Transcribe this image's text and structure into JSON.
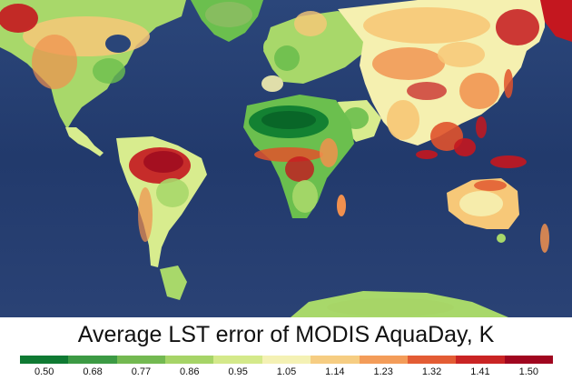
{
  "title": "Average LST error of MODIS AquaDay, K",
  "map": {
    "ocean_color": "#26406f",
    "land_palette": [
      "#0a7a30",
      "#2f9a3e",
      "#6bbf4e",
      "#a8d86a",
      "#d8ec8e",
      "#f5f0b0",
      "#f7c878",
      "#f1904e",
      "#e0522c",
      "#c4171f",
      "#9e0a1f"
    ]
  },
  "colorbar": {
    "colors": [
      "#0f7a33",
      "#3c9a44",
      "#73b951",
      "#a6d467",
      "#d4e98a",
      "#f4f1b4",
      "#f6cd82",
      "#f39c59",
      "#e35c34",
      "#c92424",
      "#a0061f"
    ],
    "tick_labels": [
      "0.50",
      "0.68",
      "0.77",
      "0.86",
      "0.95",
      "1.05",
      "1.14",
      "1.23",
      "1.32",
      "1.41",
      "1.50"
    ]
  }
}
